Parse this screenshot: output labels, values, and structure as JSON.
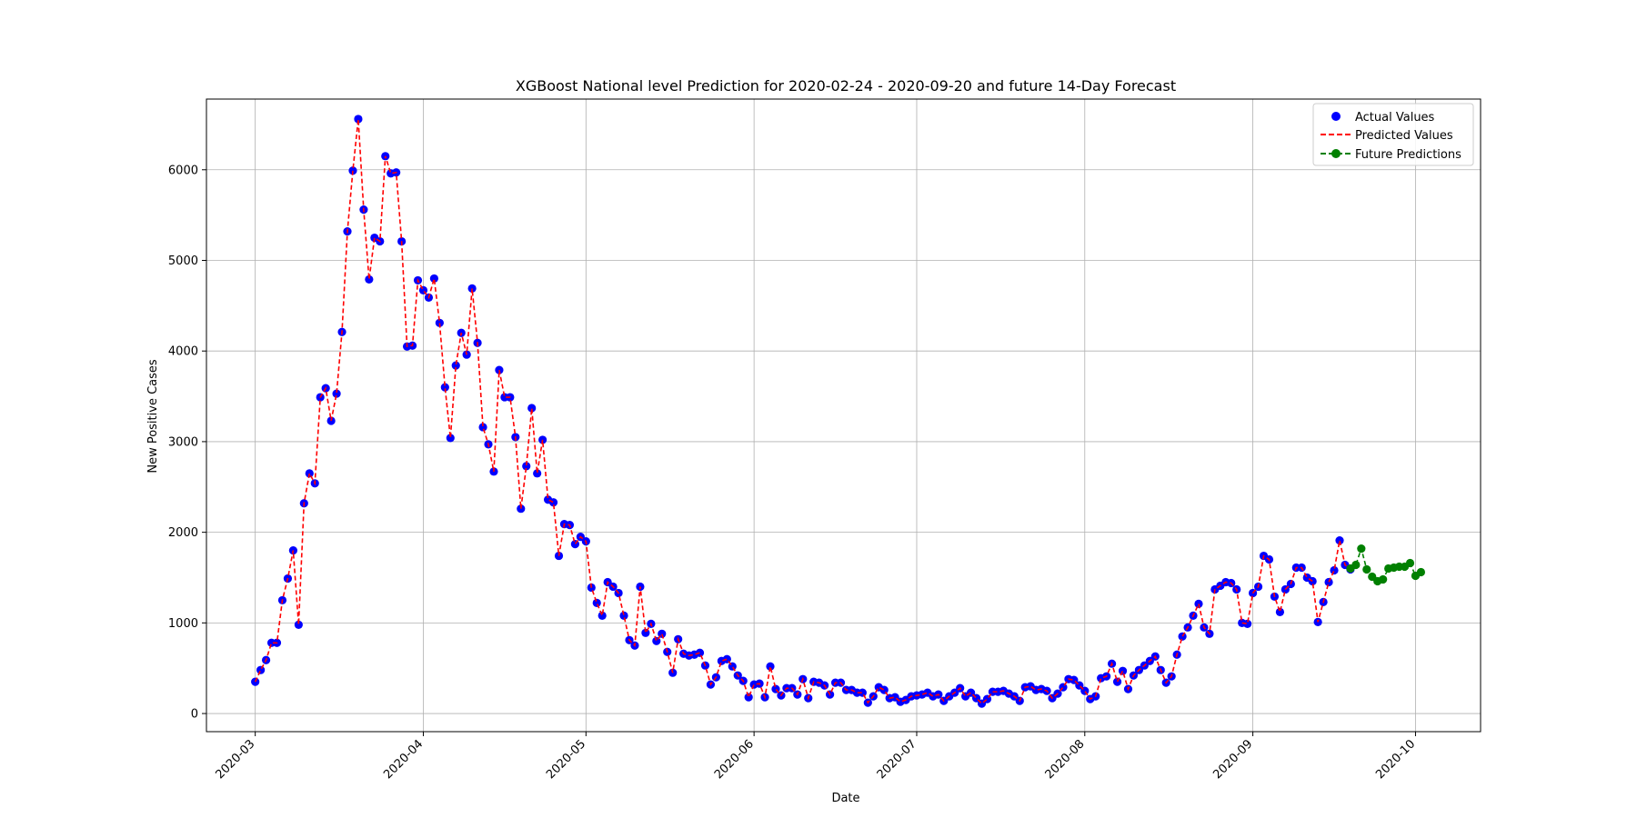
{
  "chart_data": {
    "type": "line",
    "title": "XGBoost National level Prediction for 2020-02-24 - 2020-09-20 and future 14-Day Forecast",
    "xlabel": "Date",
    "ylabel": "New Positive Cases",
    "x_start": "2020-03-01",
    "x_end": "2020-10-03",
    "xlim": [
      "2020-02-21",
      "2020-10-13"
    ],
    "ylim": [
      -200,
      6780
    ],
    "grid": true,
    "legend_position": "top-right",
    "x_ticks": [
      "2020-03",
      "2020-04",
      "2020-05",
      "2020-06",
      "2020-07",
      "2020-08",
      "2020-09",
      "2020-10"
    ],
    "y_ticks": [
      0,
      1000,
      2000,
      3000,
      4000,
      5000,
      6000
    ],
    "colors": {
      "actual": "#0000ff",
      "predicted": "#ff0000",
      "future": "#008000"
    },
    "series": [
      {
        "name": "Actual Values",
        "style": "scatter",
        "start_date": "2020-03-01",
        "values": [
          350,
          480,
          590,
          780,
          780,
          1250,
          1490,
          1800,
          980,
          2320,
          2650,
          2540,
          3490,
          3590,
          3230,
          3530,
          4210,
          5320,
          5990,
          6560,
          5560,
          4790,
          5250,
          5210,
          6150,
          5960,
          5970,
          5210,
          4050,
          4060,
          4780,
          4670,
          4590,
          4800,
          4310,
          3600,
          3040,
          3840,
          4200,
          3960,
          4690,
          4090,
          3160,
          2970,
          2670,
          3790,
          3490,
          3490,
          3050,
          2260,
          2730,
          3370,
          2650,
          3020,
          2360,
          2330,
          1740,
          2090,
          2080,
          1870,
          1950,
          1900,
          1390,
          1220,
          1080,
          1450,
          1400,
          1330,
          1080,
          810,
          750,
          1400,
          890,
          990,
          800,
          880,
          680,
          450,
          820,
          660,
          640,
          650,
          670,
          530,
          320,
          400,
          580,
          600,
          520,
          420,
          360,
          180,
          320,
          330,
          180,
          520,
          270,
          200,
          280,
          280,
          210,
          380,
          170,
          350,
          340,
          310,
          210,
          340,
          340,
          260,
          260,
          230,
          230,
          120,
          190,
          290,
          260,
          170,
          180,
          130,
          150,
          190,
          200,
          210,
          230,
          190,
          210,
          140,
          190,
          230,
          280,
          190,
          230,
          170,
          110,
          160,
          240,
          240,
          250,
          220,
          190,
          140,
          290,
          300,
          260,
          270,
          250,
          170,
          220,
          290,
          380,
          370,
          310,
          250,
          160,
          190,
          390,
          410,
          550,
          350,
          470,
          270,
          420,
          480,
          530,
          580,
          630,
          480,
          340,
          410,
          650,
          850,
          950,
          1080,
          1210,
          950,
          880,
          1370,
          1410,
          1450,
          1440,
          1370,
          1000,
          990,
          1330,
          1400,
          1740,
          1700,
          1290,
          1120,
          1370,
          1430,
          1610,
          1610,
          1500,
          1460,
          1010,
          1230,
          1450,
          1580,
          1910,
          1640,
          1590
        ]
      },
      {
        "name": "Predicted Values",
        "style": "dashed-line",
        "start_date": "2020-03-01",
        "values": [
          350,
          480,
          590,
          780,
          780,
          1250,
          1490,
          1800,
          980,
          2320,
          2650,
          2540,
          3490,
          3590,
          3230,
          3530,
          4210,
          5320,
          5990,
          6560,
          5560,
          4790,
          5250,
          5210,
          6150,
          5960,
          5970,
          5210,
          4050,
          4060,
          4780,
          4670,
          4590,
          4800,
          4310,
          3600,
          3040,
          3840,
          4200,
          3960,
          4690,
          4090,
          3160,
          2970,
          2670,
          3790,
          3490,
          3490,
          3050,
          2260,
          2730,
          3370,
          2650,
          3020,
          2360,
          2330,
          1740,
          2090,
          2080,
          1870,
          1950,
          1900,
          1390,
          1220,
          1080,
          1450,
          1400,
          1330,
          1080,
          810,
          750,
          1400,
          890,
          990,
          800,
          880,
          680,
          450,
          820,
          660,
          640,
          650,
          670,
          530,
          320,
          400,
          580,
          600,
          520,
          420,
          360,
          180,
          320,
          330,
          180,
          520,
          270,
          200,
          280,
          280,
          210,
          380,
          170,
          350,
          340,
          310,
          210,
          340,
          340,
          260,
          260,
          230,
          230,
          120,
          190,
          290,
          260,
          170,
          180,
          130,
          150,
          190,
          200,
          210,
          230,
          190,
          210,
          140,
          190,
          230,
          280,
          190,
          230,
          170,
          110,
          160,
          240,
          240,
          250,
          220,
          190,
          140,
          290,
          300,
          260,
          270,
          250,
          170,
          220,
          290,
          380,
          370,
          310,
          250,
          160,
          190,
          390,
          410,
          550,
          350,
          470,
          270,
          420,
          480,
          530,
          580,
          630,
          480,
          340,
          410,
          650,
          850,
          950,
          1080,
          1210,
          950,
          880,
          1370,
          1410,
          1450,
          1440,
          1370,
          1000,
          990,
          1330,
          1400,
          1740,
          1700,
          1290,
          1120,
          1370,
          1430,
          1610,
          1610,
          1500,
          1460,
          1010,
          1230,
          1450,
          1580,
          1910,
          1640,
          1590
        ]
      },
      {
        "name": "Future Predictions",
        "style": "dashed-line-markers",
        "start_date": "2020-09-19",
        "values": [
          1600,
          1640,
          1820,
          1590,
          1510,
          1460,
          1480,
          1600,
          1610,
          1620,
          1620,
          1660,
          1520,
          1560
        ]
      }
    ]
  }
}
